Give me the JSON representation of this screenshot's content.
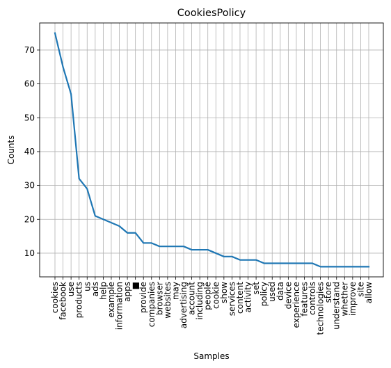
{
  "chart_data": {
    "type": "line",
    "title": "CookiesPolicy",
    "xlabel": "Samples",
    "ylabel": "Counts",
    "categories": [
      "cookies",
      "facebook",
      "use",
      "products",
      "us",
      "ads",
      "help",
      "example",
      "information",
      "apps",
      "■",
      "provide",
      "companies",
      "browser",
      "websites",
      "may",
      "advertising",
      "account",
      "including",
      "people",
      "cookie",
      "show",
      "services",
      "content",
      "activity",
      "set",
      "policy",
      "used",
      "data",
      "device",
      "experience",
      "features",
      "controls",
      "technologies",
      "store",
      "understand",
      "whether",
      "improve",
      "site",
      "allow"
    ],
    "values": [
      75,
      65,
      57,
      32,
      29,
      21,
      20,
      19,
      18,
      16,
      16,
      13,
      13,
      12,
      12,
      12,
      12,
      11,
      11,
      11,
      10,
      9,
      9,
      8,
      8,
      8,
      7,
      7,
      7,
      7,
      7,
      7,
      7,
      6,
      6,
      6,
      6,
      6,
      6,
      6
    ],
    "ylim": [
      3,
      78
    ],
    "yticks": [
      10,
      20,
      30,
      40,
      50,
      60,
      70
    ],
    "grid": true,
    "line_color": "#1f77b4",
    "grid_color": "#b0b0b0"
  }
}
